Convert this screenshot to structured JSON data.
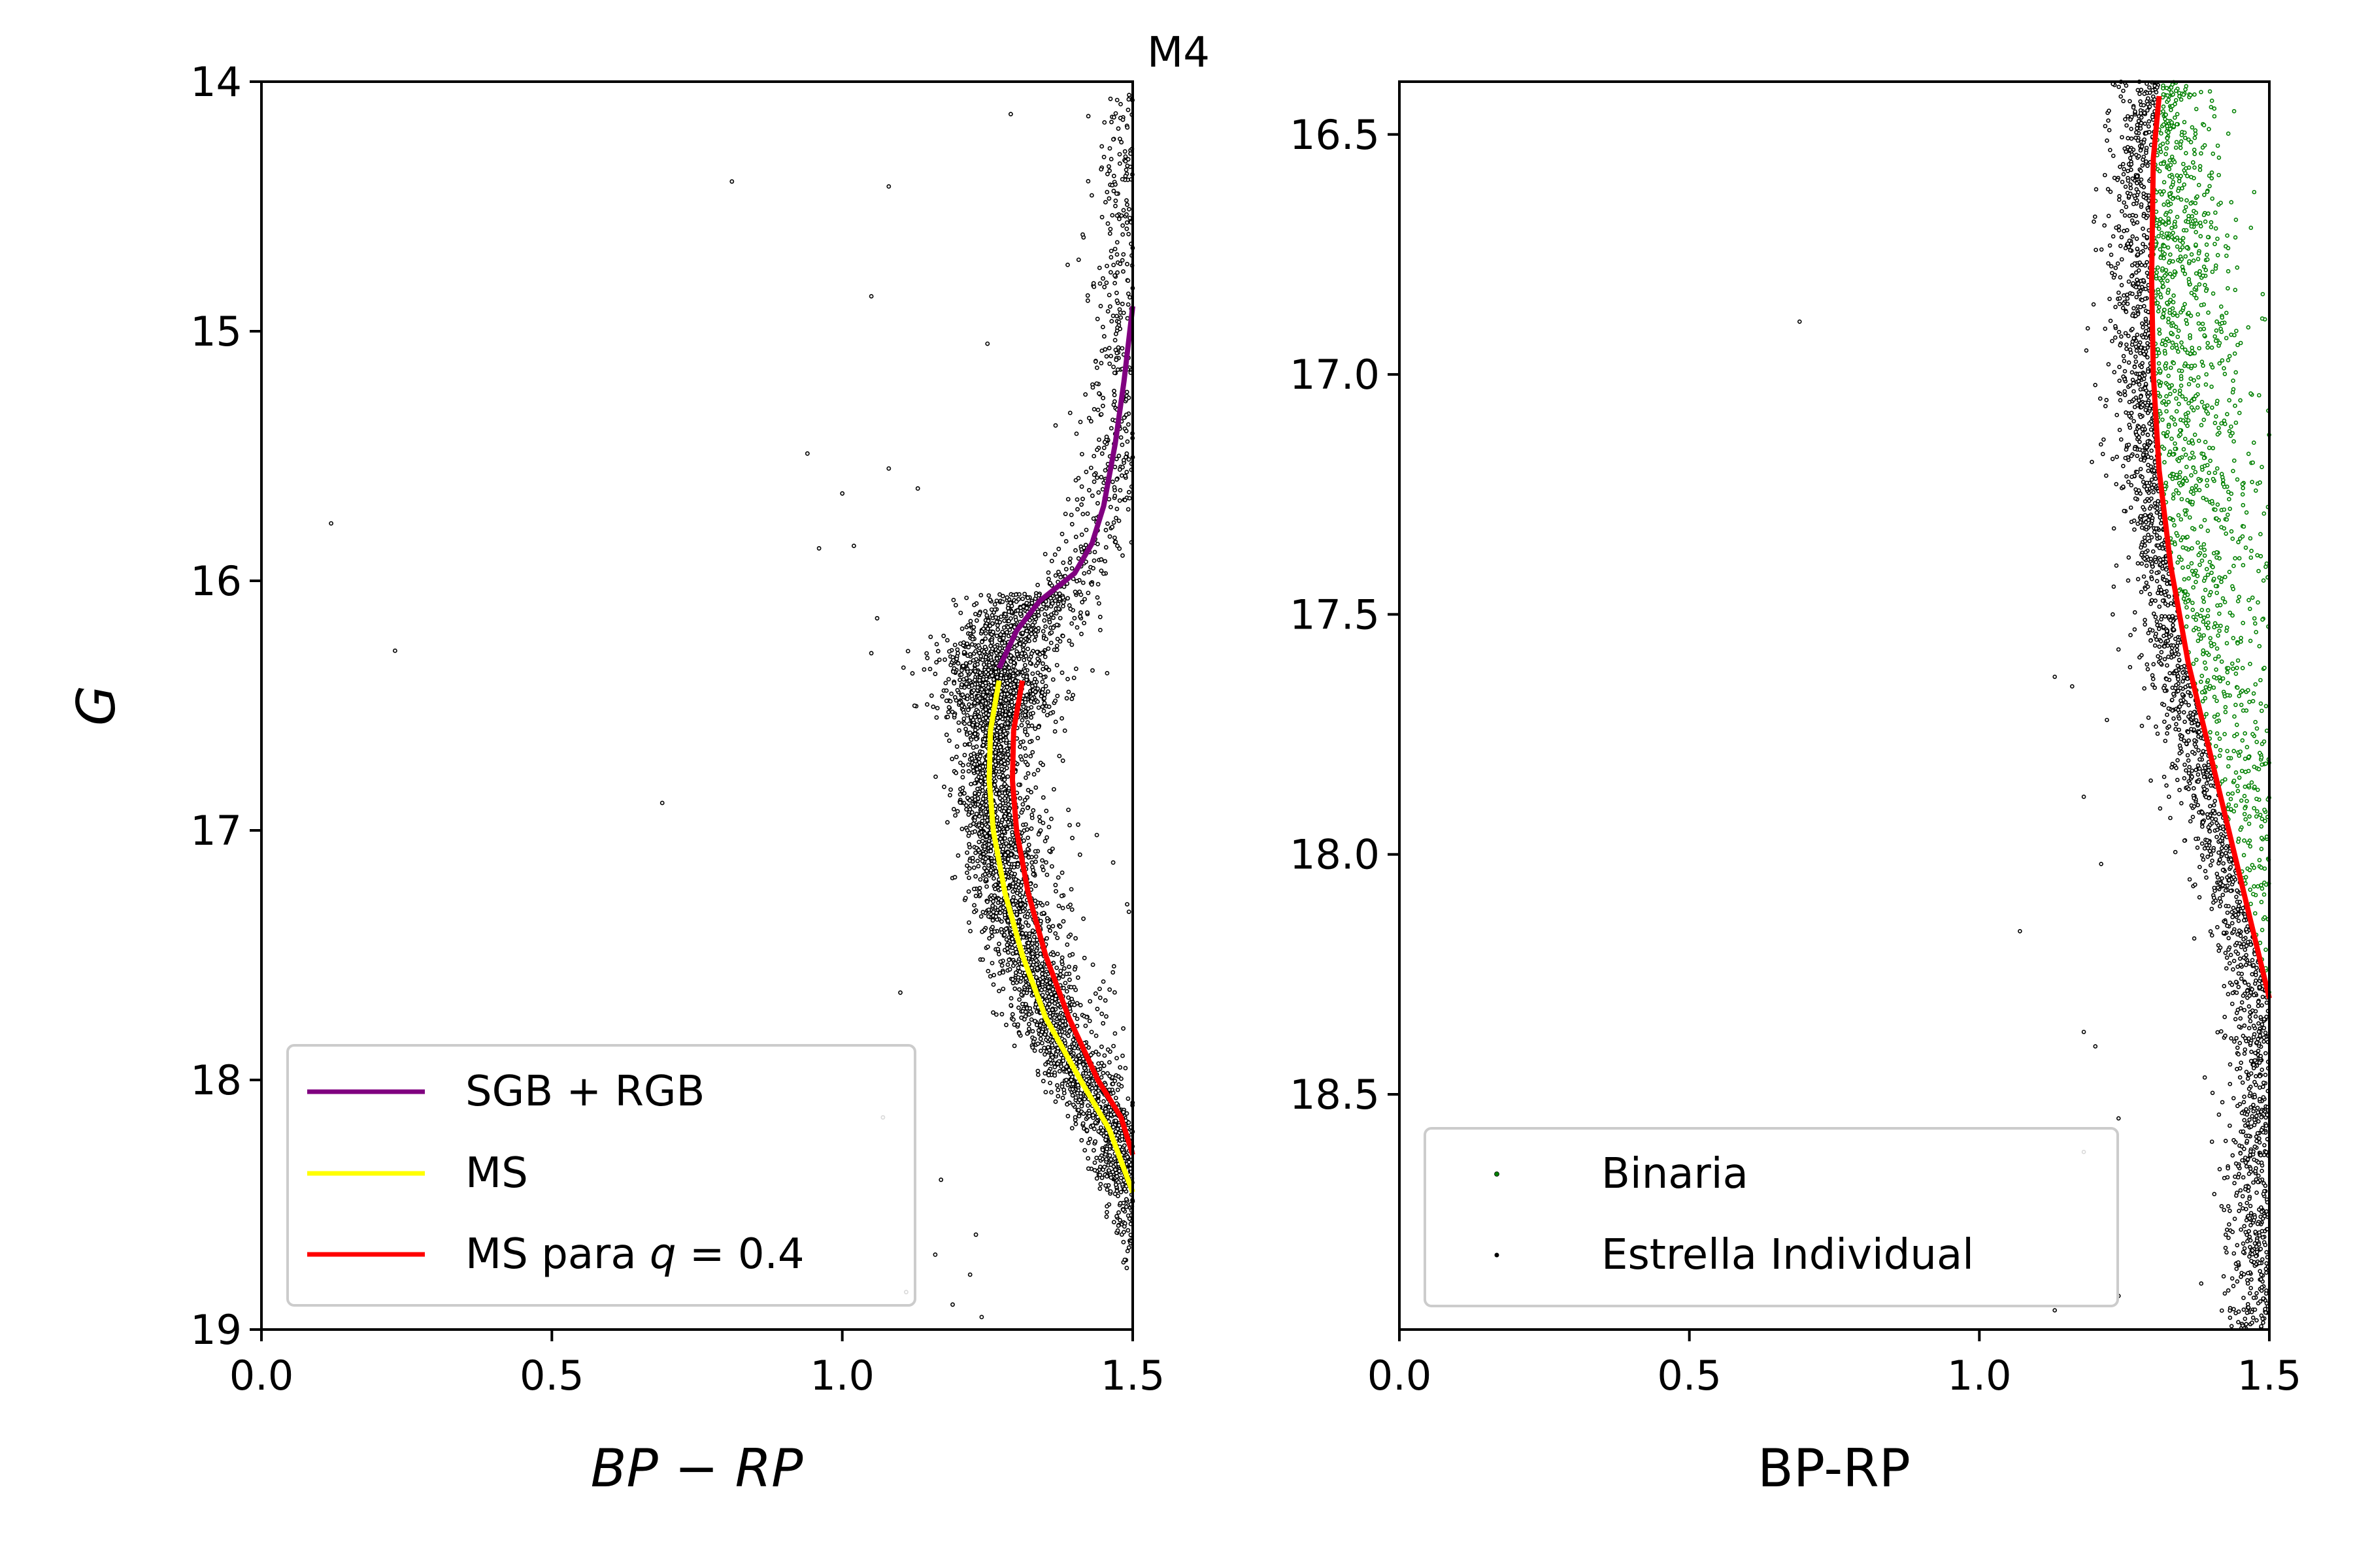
{
  "figure": {
    "title": "M4"
  },
  "chart_data": [
    {
      "type": "scatter",
      "panel": "left",
      "xlabel": "BP − RP",
      "ylabel": "G",
      "xlim": [
        0.0,
        1.5
      ],
      "ylim": [
        14,
        19
      ],
      "y_inverted": true,
      "grid": false,
      "x_ticks": [
        "0.0",
        "0.5",
        "1.0",
        "1.5"
      ],
      "y_ticks": [
        "14",
        "15",
        "16",
        "17",
        "18",
        "19"
      ],
      "legend_position": "lower-left",
      "series": [
        {
          "name": "SGB + RGB",
          "kind": "line",
          "color": "#800080",
          "points": [
            [
              1.27,
              16.35
            ],
            [
              1.3,
              16.2
            ],
            [
              1.34,
              16.08
            ],
            [
              1.4,
              15.97
            ],
            [
              1.43,
              15.85
            ],
            [
              1.45,
              15.7
            ],
            [
              1.47,
              15.45
            ],
            [
              1.485,
              15.2
            ],
            [
              1.5,
              14.9
            ]
          ]
        },
        {
          "name": "MS",
          "kind": "line",
          "color": "#ffff00",
          "points": [
            [
              1.27,
              16.4
            ],
            [
              1.255,
              16.6
            ],
            [
              1.253,
              16.8
            ],
            [
              1.26,
              17.0
            ],
            [
              1.28,
              17.25
            ],
            [
              1.31,
              17.5
            ],
            [
              1.35,
              17.75
            ],
            [
              1.41,
              18.0
            ],
            [
              1.46,
              18.2
            ],
            [
              1.5,
              18.45
            ]
          ]
        },
        {
          "name": "MS para q = 0.4",
          "kind": "line",
          "color": "#ff0000",
          "points": [
            [
              1.31,
              16.4
            ],
            [
              1.295,
              16.6
            ],
            [
              1.293,
              16.8
            ],
            [
              1.3,
              17.0
            ],
            [
              1.32,
              17.25
            ],
            [
              1.35,
              17.5
            ],
            [
              1.39,
              17.75
            ],
            [
              1.44,
              18.0
            ],
            [
              1.48,
              18.15
            ],
            [
              1.5,
              18.3
            ]
          ]
        }
      ],
      "outliers": [
        [
          1.29,
          14.13
        ],
        [
          0.81,
          14.4
        ],
        [
          1.08,
          14.42
        ],
        [
          1.05,
          14.86
        ],
        [
          1.25,
          15.05
        ],
        [
          0.94,
          15.49
        ],
        [
          1.08,
          15.55
        ],
        [
          0.12,
          15.77
        ],
        [
          1.0,
          15.65
        ],
        [
          1.13,
          15.63
        ],
        [
          0.96,
          15.87
        ],
        [
          1.02,
          15.86
        ],
        [
          1.06,
          16.15
        ],
        [
          0.23,
          16.28
        ],
        [
          1.05,
          16.29
        ],
        [
          0.69,
          16.89
        ],
        [
          1.1,
          17.65
        ],
        [
          1.07,
          18.15
        ],
        [
          1.17,
          18.4
        ],
        [
          1.23,
          18.62
        ],
        [
          1.11,
          18.85
        ],
        [
          1.19,
          18.9
        ],
        [
          1.16,
          18.7
        ],
        [
          1.24,
          18.95
        ],
        [
          1.22,
          18.78
        ]
      ]
    },
    {
      "type": "scatter",
      "panel": "right",
      "xlabel": "BP-RP",
      "ylabel": "",
      "xlim": [
        0.0,
        1.5
      ],
      "ylim": [
        16.39,
        18.99
      ],
      "y_inverted": true,
      "grid": false,
      "x_ticks": [
        "0.0",
        "0.5",
        "1.0",
        "1.5"
      ],
      "y_ticks": [
        "16.5",
        "17.0",
        "17.5",
        "18.0",
        "18.5"
      ],
      "legend_position": "lower-left",
      "series": [
        {
          "name": "Binaria",
          "kind": "scatter",
          "color": "#008000",
          "region": "right of the q = 0.4 track"
        },
        {
          "name": "Estrella Individual",
          "kind": "scatter",
          "color": "#000000",
          "region": "left of the q = 0.4 track"
        },
        {
          "kind": "line",
          "color": "#ff0000",
          "points": [
            [
              1.31,
              16.42
            ],
            [
              1.3,
              16.55
            ],
            [
              1.297,
              16.8
            ],
            [
              1.3,
              17.0
            ],
            [
              1.31,
              17.2
            ],
            [
              1.33,
              17.4
            ],
            [
              1.36,
              17.6
            ],
            [
              1.4,
              17.8
            ],
            [
              1.44,
              18.0
            ],
            [
              1.47,
              18.15
            ],
            [
              1.5,
              18.3
            ]
          ]
        }
      ],
      "outliers": [
        [
          0.69,
          16.89
        ],
        [
          1.23,
          17.5
        ],
        [
          1.13,
          17.63
        ],
        [
          1.16,
          17.65
        ],
        [
          1.22,
          17.72
        ],
        [
          1.18,
          17.88
        ],
        [
          1.21,
          18.02
        ],
        [
          1.07,
          18.16
        ],
        [
          1.18,
          18.37
        ],
        [
          1.2,
          18.4
        ],
        [
          1.24,
          18.55
        ],
        [
          1.18,
          18.62
        ],
        [
          1.13,
          18.95
        ],
        [
          1.24,
          18.92
        ]
      ]
    }
  ],
  "legend_left": {
    "sgb_rgb": "SGB + RGB",
    "ms": "MS",
    "ms_q_prefix": "MS para ",
    "ms_q_var": "q",
    "ms_q_suffix": " = 0.4"
  },
  "legend_right": {
    "binaria": "Binaria",
    "individual": "Estrella Individual"
  },
  "colors": {
    "sgb_rgb": "#800080",
    "ms": "#ffff00",
    "ms_q": "#ff0000",
    "binaria": "#008000",
    "individual": "#000000"
  }
}
